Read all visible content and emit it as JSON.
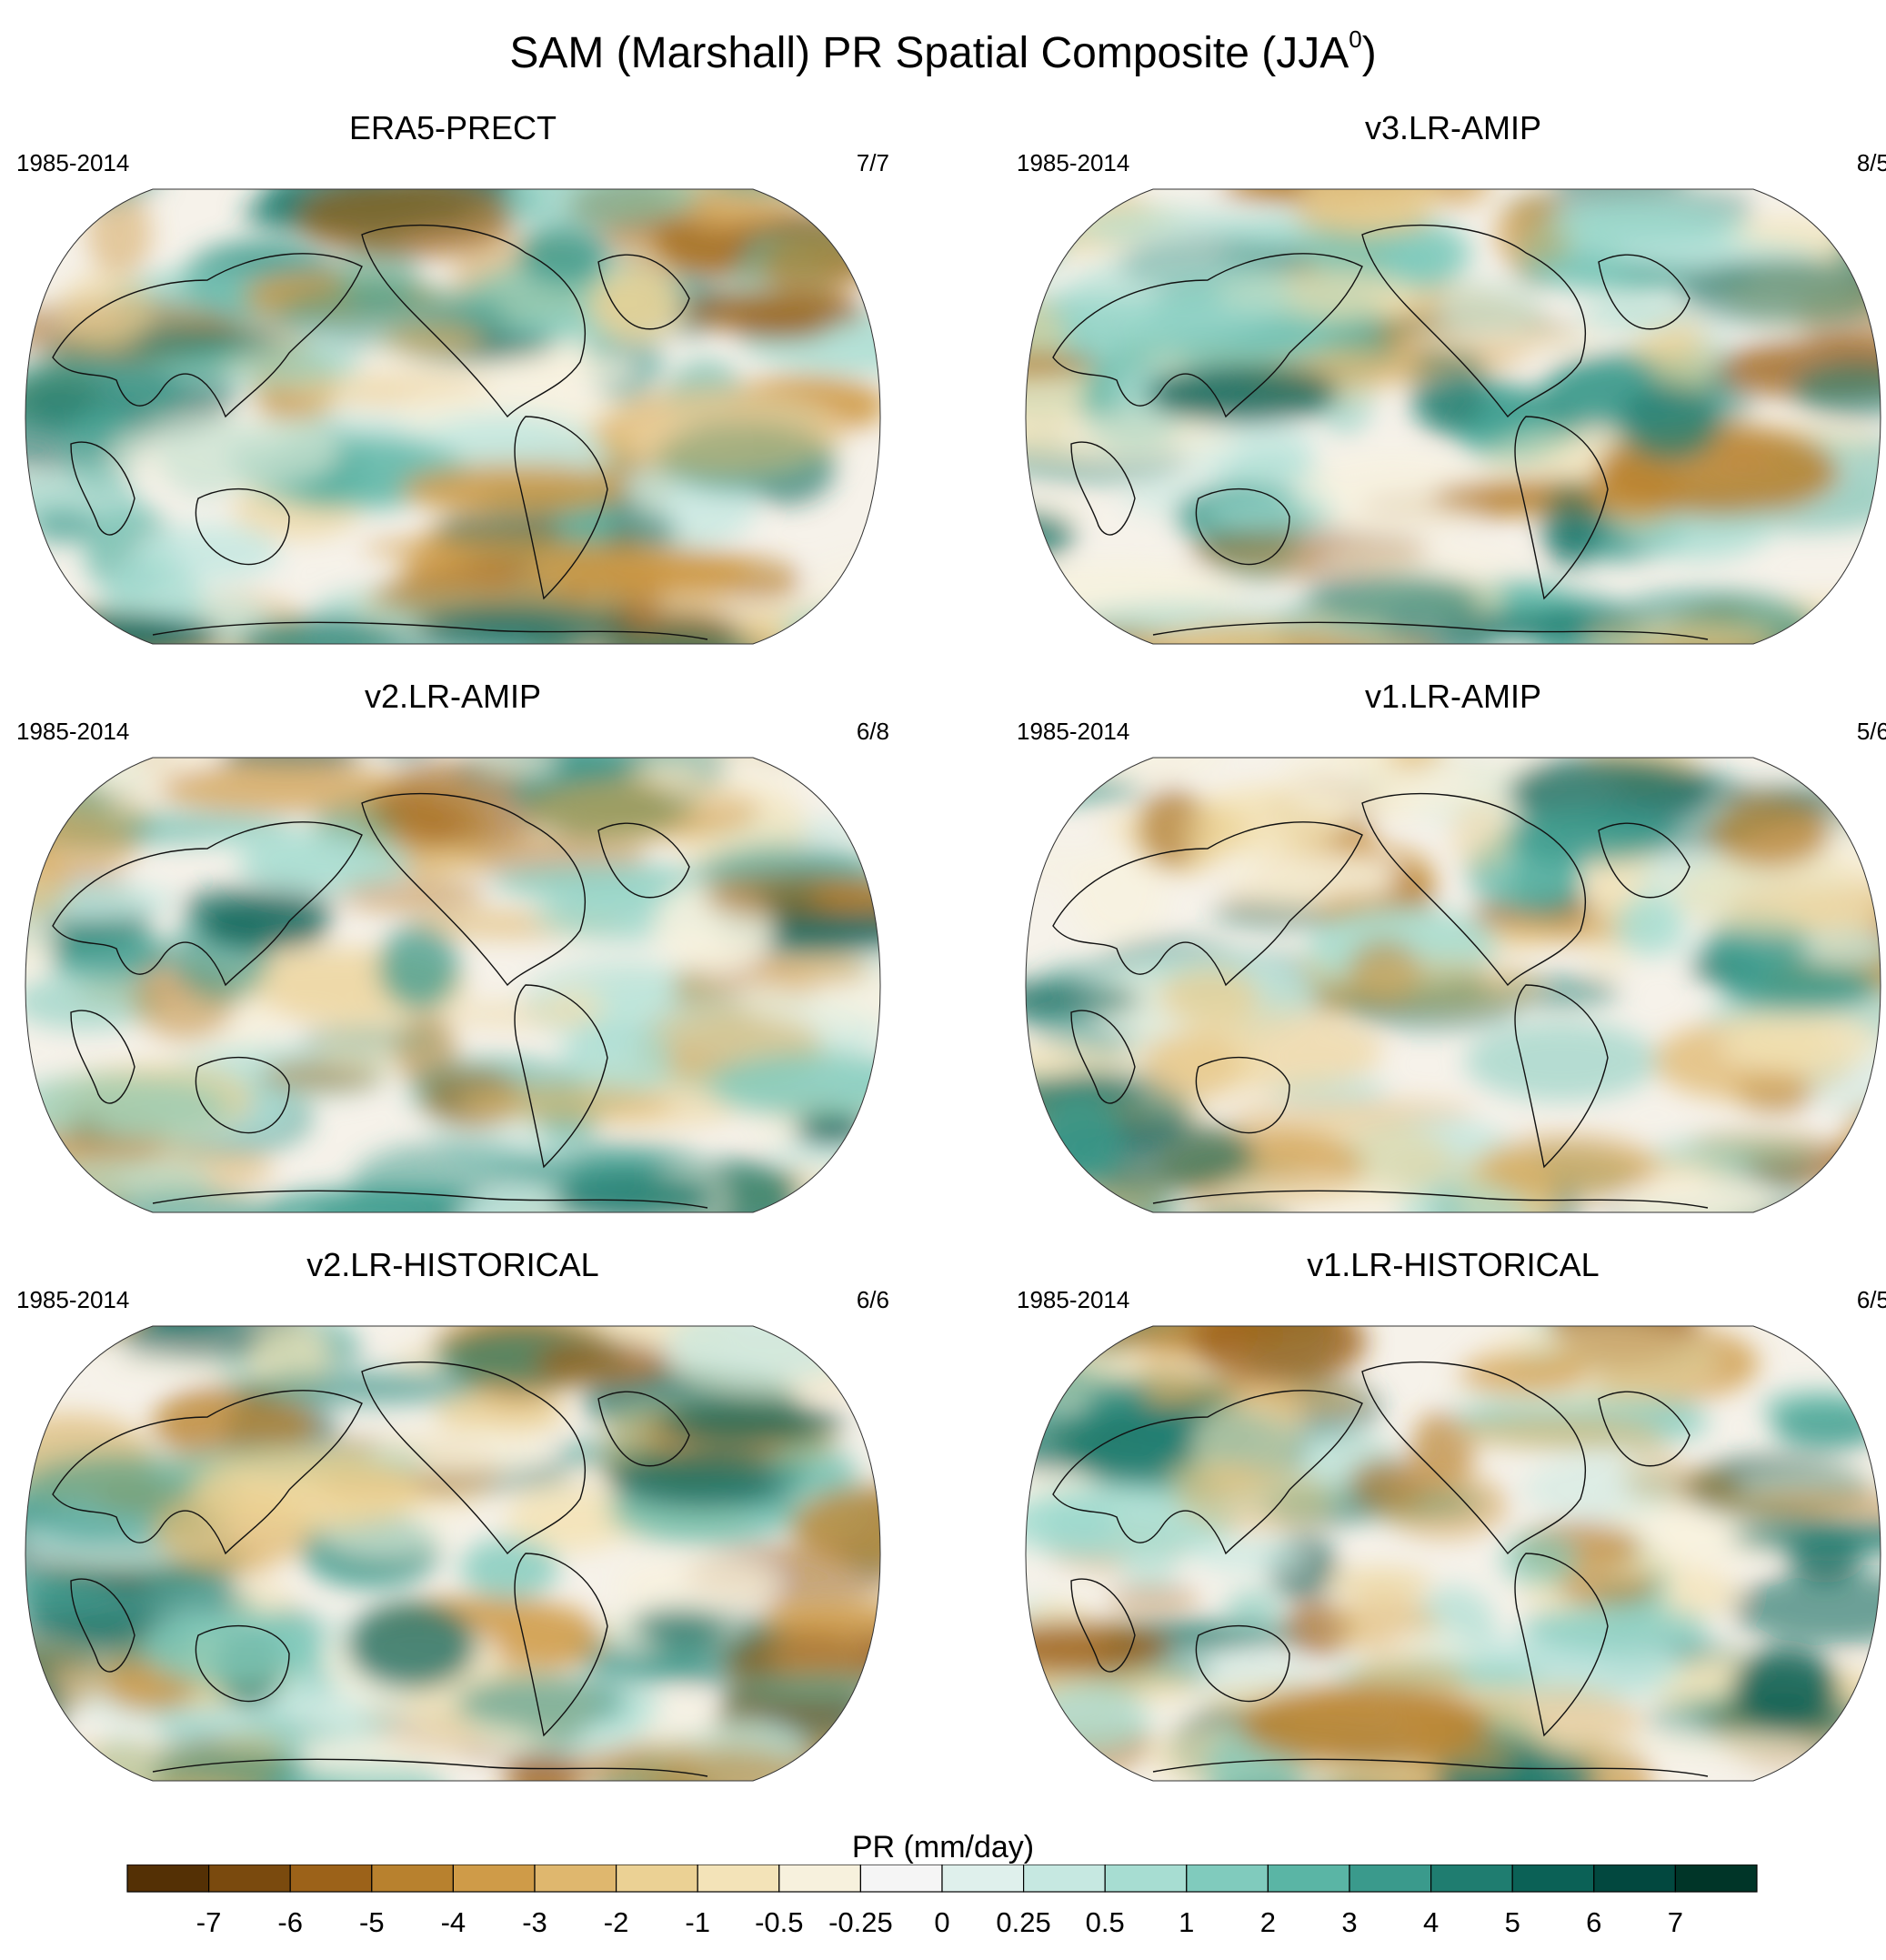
{
  "figure": {
    "title_main": "SAM (Marshall) PR Spatial Composite (JJA",
    "title_sup": "0",
    "title_close": ")"
  },
  "panels": [
    {
      "title": "ERA5-PRECT",
      "years": "1985-2014",
      "count": "7/7"
    },
    {
      "title": "v3.LR-AMIP",
      "years": "1985-2014",
      "count": "8/5"
    },
    {
      "title": "v2.LR-AMIP",
      "years": "1985-2014",
      "count": "6/8"
    },
    {
      "title": "v1.LR-AMIP",
      "years": "1985-2014",
      "count": "5/6"
    },
    {
      "title": "v2.LR-HISTORICAL",
      "years": "1985-2014",
      "count": "6/6"
    },
    {
      "title": "v1.LR-HISTORICAL",
      "years": "1985-2014",
      "count": "6/5"
    }
  ],
  "colorbar": {
    "title": "PR (mm/day)",
    "tick_labels": [
      "-7",
      "-6",
      "-5",
      "-4",
      "-3",
      "-2",
      "-1",
      "-0.5",
      "-0.25",
      "0",
      "0.25",
      "0.5",
      "1",
      "2",
      "3",
      "4",
      "5",
      "6",
      "7"
    ],
    "colors": [
      "#543005",
      "#7a4a0e",
      "#9c6219",
      "#b8812e",
      "#cf9b48",
      "#dfb76e",
      "#ebd194",
      "#f3e3b8",
      "#f7f1dd",
      "#f5f5f5",
      "#dff0ec",
      "#c6e8e1",
      "#a7ddd2",
      "#80cbbd",
      "#5ab5a5",
      "#3a9a8c",
      "#1f7d70",
      "#0b6156",
      "#02483f",
      "#003528"
    ]
  },
  "map_colors": {
    "background": "#f6f2ea",
    "coast": "#111111"
  }
}
